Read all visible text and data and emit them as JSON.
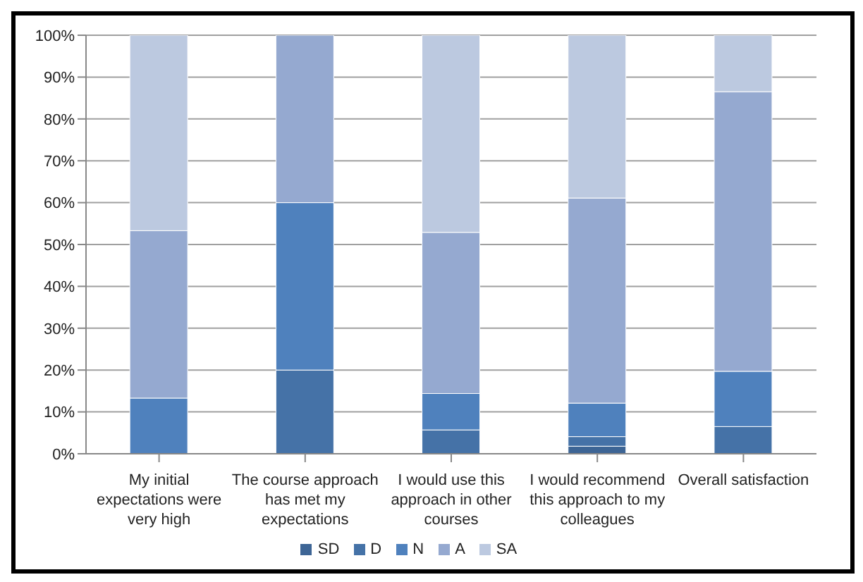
{
  "chart_data": {
    "type": "bar",
    "stacked": true,
    "categories": [
      "My initial expectations were very high",
      "The course approach has met my expectations",
      "I would use this approach in other courses",
      "I would recommend this approach to my colleagues",
      "Overall satisfaction"
    ],
    "series": [
      {
        "name": "SD",
        "color": "#3d6595",
        "values": [
          0,
          0,
          0,
          1.8,
          0
        ]
      },
      {
        "name": "D",
        "color": "#4572a7",
        "values": [
          0,
          20,
          5.7,
          2.3,
          6.5
        ]
      },
      {
        "name": "N",
        "color": "#4f81bd",
        "values": [
          13.3,
          40,
          8.7,
          8,
          13.2
        ]
      },
      {
        "name": "A",
        "color": "#95a9d0",
        "values": [
          40,
          40,
          38.5,
          49,
          66.8
        ]
      },
      {
        "name": "SA",
        "color": "#bcc9e0",
        "values": [
          46.7,
          0,
          47.1,
          38.9,
          13.5
        ]
      }
    ],
    "ylim": [
      0,
      100
    ],
    "yticks": [
      {
        "value": 0,
        "label": "0%"
      },
      {
        "value": 10,
        "label": "10%"
      },
      {
        "value": 20,
        "label": "20%"
      },
      {
        "value": 30,
        "label": "30%"
      },
      {
        "value": 40,
        "label": "40%"
      },
      {
        "value": 50,
        "label": "50%"
      },
      {
        "value": 60,
        "label": "60%"
      },
      {
        "value": 70,
        "label": "70%"
      },
      {
        "value": 80,
        "label": "80%"
      },
      {
        "value": 90,
        "label": "90%"
      },
      {
        "value": 100,
        "label": "100%"
      }
    ],
    "grid": "y",
    "legend": "bottom"
  }
}
